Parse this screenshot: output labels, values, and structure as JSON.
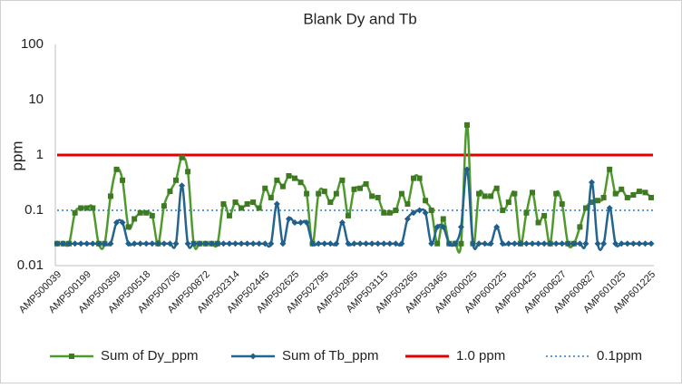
{
  "chart_data": {
    "type": "line",
    "title": "Blank Dy and Tb",
    "y_label": "ppm",
    "log_scale": true,
    "ylim": [
      0.01,
      100
    ],
    "yticks": [
      0.01,
      0.1,
      1,
      10,
      100
    ],
    "legend": "bottom",
    "categories": [
      "AMP500039",
      null,
      null,
      null,
      null,
      "AMP500199",
      null,
      null,
      null,
      null,
      "AMP500359",
      null,
      null,
      null,
      null,
      "AMP500518",
      null,
      null,
      null,
      null,
      "AMP500705",
      null,
      null,
      null,
      null,
      "AMP500872",
      null,
      null,
      null,
      null,
      "AMP502314",
      null,
      null,
      null,
      null,
      "AMP502445",
      null,
      null,
      null,
      null,
      "AMP502625",
      null,
      null,
      null,
      null,
      "AMP502795",
      null,
      null,
      null,
      null,
      "AMP502955",
      null,
      null,
      null,
      null,
      "AMP503115",
      null,
      null,
      null,
      null,
      "AMP503265",
      null,
      null,
      null,
      null,
      "AMP503465",
      null,
      null,
      null,
      null,
      "AMP600025",
      null,
      null,
      null,
      null,
      "AMP600225",
      null,
      null,
      null,
      null,
      "AMP600425",
      null,
      null,
      null,
      null,
      "AMP600627",
      null,
      null,
      null,
      null,
      "AMP600827",
      null,
      null,
      null,
      null,
      "AMP601025",
      null,
      null,
      null,
      null,
      "AMP601225"
    ],
    "series": [
      {
        "name": "Sum of Dy_ppm",
        "color": "#4f9a2d",
        "marker_color": "#3d7a22",
        "marker": "square",
        "values": [
          0.025,
          0.025,
          0.025,
          0.09,
          0.11,
          0.11,
          0.11,
          0.025,
          0.025,
          0.18,
          0.55,
          0.35,
          0.05,
          0.07,
          0.09,
          0.09,
          0.08,
          0.025,
          0.12,
          0.22,
          0.35,
          0.9,
          0.5,
          0.025,
          0.025,
          0.025,
          0.025,
          0.025,
          0.13,
          0.08,
          0.14,
          0.11,
          0.13,
          0.14,
          0.11,
          0.25,
          0.17,
          0.35,
          0.27,
          0.42,
          0.38,
          0.32,
          0.2,
          0.025,
          0.2,
          0.22,
          0.14,
          0.2,
          0.35,
          0.08,
          0.24,
          0.25,
          0.3,
          0.18,
          0.17,
          0.09,
          0.09,
          0.1,
          0.2,
          0.13,
          0.38,
          0.38,
          0.15,
          0.1,
          0.025,
          0.07,
          0.025,
          0.025,
          0.025,
          3.5,
          0.025,
          0.2,
          0.18,
          0.18,
          0.25,
          0.1,
          0.14,
          0.2,
          0.025,
          0.09,
          0.21,
          0.06,
          0.08,
          0.025,
          0.2,
          0.13,
          0.025,
          0.025,
          0.05,
          0.11,
          0.14,
          0.15,
          0.17,
          0.55,
          0.2,
          0.24,
          0.17,
          0.19,
          0.22,
          0.21,
          0.17
        ]
      },
      {
        "name": "Sum of Tb_ppm",
        "color": "#23658f",
        "marker_color": "#1f5f8b",
        "marker": "diamond",
        "values": [
          0.025,
          0.025,
          0.025,
          0.025,
          0.025,
          0.025,
          0.025,
          0.025,
          0.025,
          0.025,
          0.06,
          0.06,
          0.025,
          0.025,
          0.025,
          0.025,
          0.025,
          0.025,
          0.025,
          0.025,
          0.025,
          0.28,
          0.025,
          0.025,
          0.025,
          0.025,
          0.025,
          0.025,
          0.025,
          0.025,
          0.025,
          0.025,
          0.025,
          0.025,
          0.025,
          0.025,
          0.025,
          0.13,
          0.025,
          0.07,
          0.06,
          0.06,
          0.06,
          0.025,
          0.025,
          0.025,
          0.025,
          0.025,
          0.06,
          0.025,
          0.025,
          0.025,
          0.025,
          0.025,
          0.025,
          0.025,
          0.025,
          0.025,
          0.025,
          0.07,
          0.09,
          0.1,
          0.09,
          0.025,
          0.05,
          0.05,
          0.025,
          0.025,
          0.05,
          0.55,
          0.025,
          0.025,
          0.025,
          0.025,
          0.05,
          0.025,
          0.025,
          0.025,
          0.025,
          0.025,
          0.025,
          0.025,
          0.025,
          0.025,
          0.025,
          0.025,
          0.025,
          0.025,
          0.025,
          0.025,
          0.32,
          0.025,
          0.025,
          0.11,
          0.025,
          0.025,
          0.025,
          0.025,
          0.025,
          0.025,
          0.025
        ]
      }
    ],
    "reference_lines": [
      {
        "name": "1.0 ppm",
        "value": 1,
        "color": "#e00000",
        "style": "solid"
      },
      {
        "name": "0.1ppm",
        "value": 0.1,
        "color": "#5b9bd5",
        "style": "dotted"
      }
    ]
  }
}
